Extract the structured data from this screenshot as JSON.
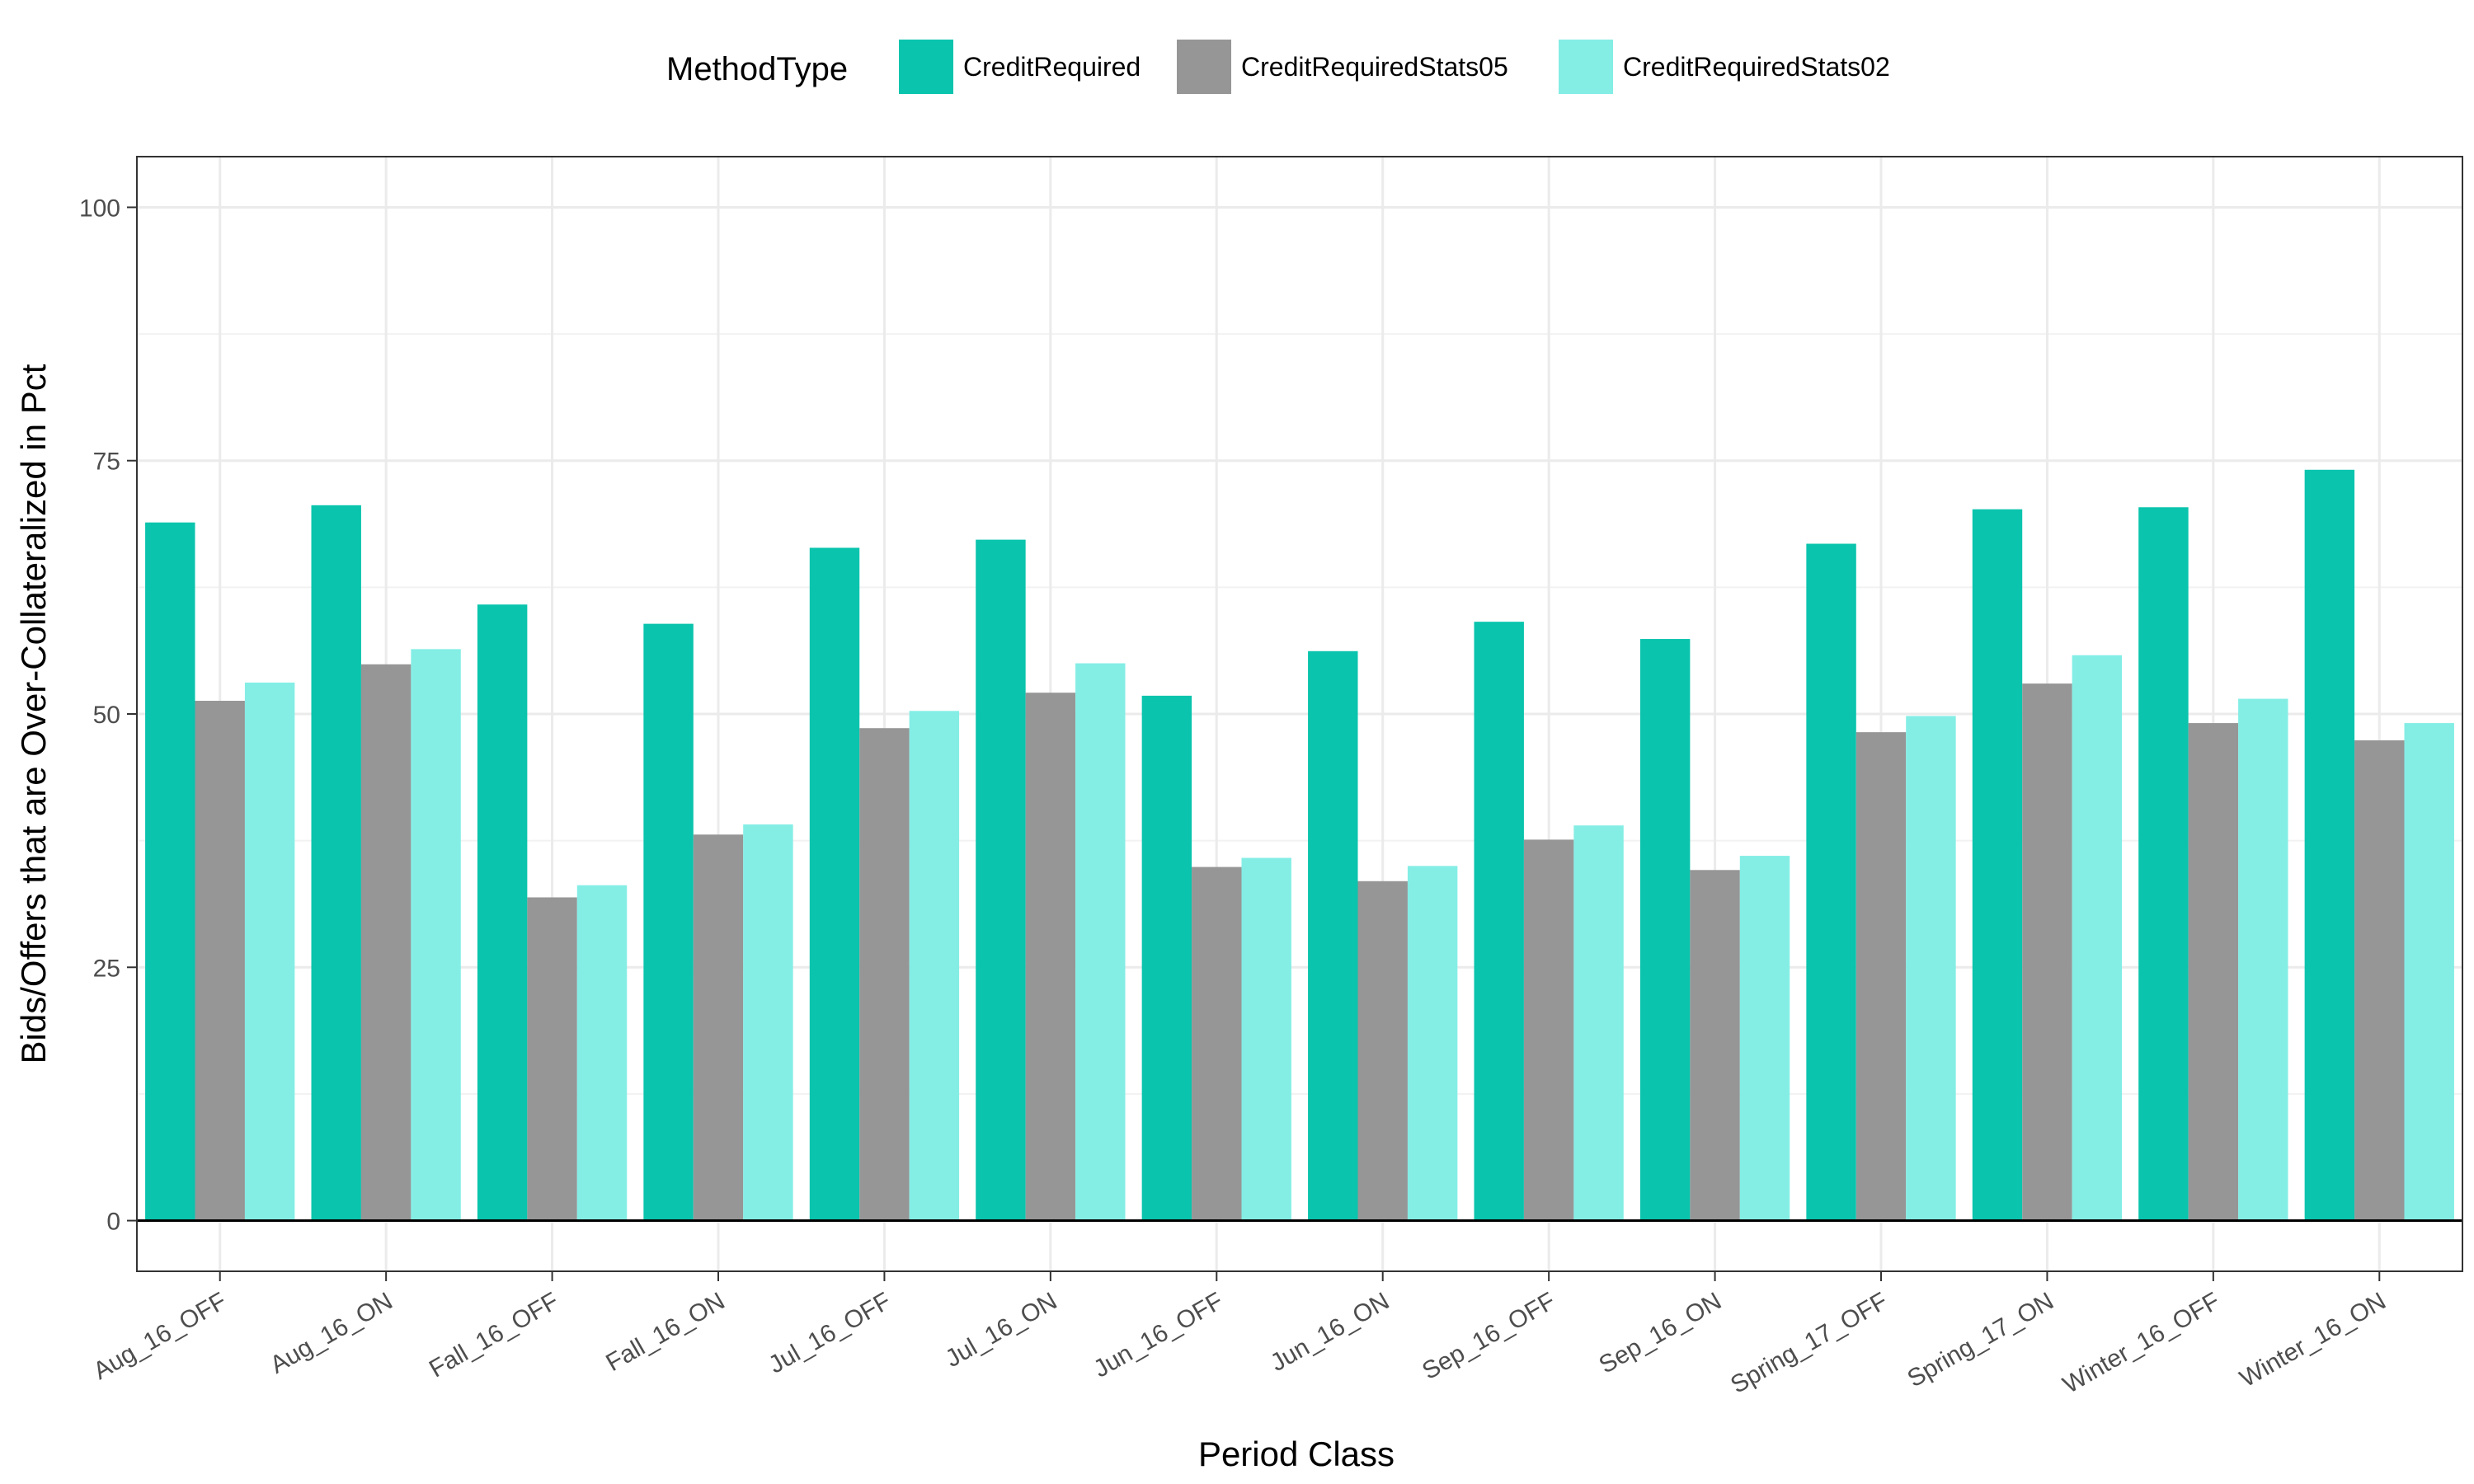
{
  "chart_data": {
    "type": "bar",
    "title": "",
    "xlabel": "Period Class",
    "ylabel": "Bids/Offers that are Over-Collateralized in Pct",
    "ylim": [
      -5,
      105
    ],
    "yticks": [
      0,
      25,
      50,
      75,
      100
    ],
    "grid": true,
    "legend": {
      "title": "MethodType",
      "position": "top"
    },
    "categories": [
      "Aug_16_OFF",
      "Aug_16_ON",
      "Fall_16_OFF",
      "Fall_16_ON",
      "Jul_16_OFF",
      "Jul_16_ON",
      "Jun_16_OFF",
      "Jun_16_ON",
      "Sep_16_OFF",
      "Sep_16_ON",
      "Spring_17_OFF",
      "Spring_17_ON",
      "Winter_16_OFF",
      "Winter_16_ON"
    ],
    "series": [
      {
        "name": "CreditRequired",
        "color": "#0ac4ad",
        "values": [
          68.9,
          70.6,
          60.8,
          58.9,
          66.4,
          67.2,
          51.8,
          56.2,
          59.1,
          57.4,
          66.8,
          70.2,
          70.4,
          74.1
        ]
      },
      {
        "name": "CreditRequiredStats05",
        "color": "#969696",
        "values": [
          51.3,
          54.9,
          31.9,
          38.1,
          48.6,
          52.1,
          34.9,
          33.5,
          37.6,
          34.6,
          48.2,
          53.0,
          49.1,
          47.4
        ]
      },
      {
        "name": "CreditRequiredStats02",
        "color": "#84eee5",
        "values": [
          53.1,
          56.4,
          33.1,
          39.1,
          50.3,
          55.0,
          35.8,
          35.0,
          39.0,
          36.0,
          49.8,
          55.8,
          51.5,
          49.1
        ]
      }
    ]
  }
}
